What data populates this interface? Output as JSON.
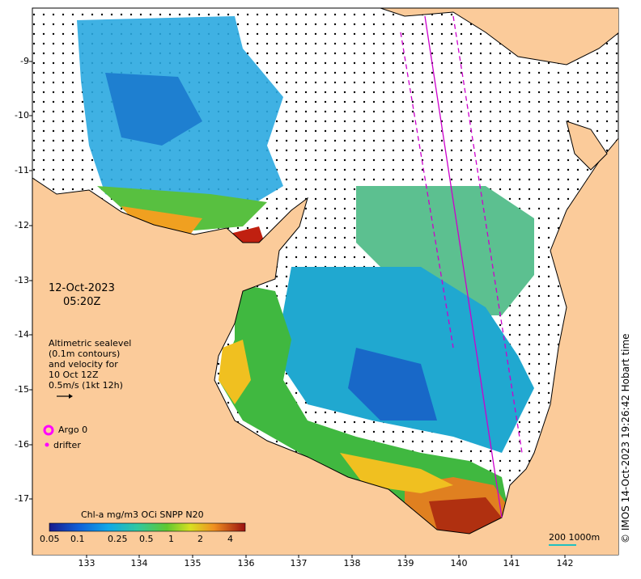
{
  "map": {
    "date": "12-Oct-2023",
    "time": "05:20Z",
    "sealevel_note": [
      "Altimetric sealevel",
      "(0.1m contours)",
      "and velocity for",
      "10 Oct 12Z",
      "0.5m/s (1kt 12h)"
    ],
    "legend": {
      "argo": "Argo 0",
      "drifter": "drifter"
    },
    "colorbar": {
      "title": "Chl-a mg/m3 OCi SNPP N20",
      "ticks": [
        "0.05",
        "0.1",
        "0.25",
        "0.5",
        "1",
        "2",
        "4"
      ]
    },
    "scale_label": "200  1000m",
    "credit": "© IMOS 14-Oct-2023 19:26:42 Hobart time",
    "x_ticks": [
      "133",
      "134",
      "135",
      "136",
      "137",
      "138",
      "139",
      "140",
      "141",
      "142"
    ],
    "y_ticks": [
      "-9",
      "-10",
      "-11",
      "-12",
      "-13",
      "-14",
      "-15",
      "-16",
      "-17"
    ],
    "colors": {
      "land": "#fbcb9a",
      "sea": "#ffffff",
      "argo": "#ff00ff",
      "track": "#cc00cc"
    }
  }
}
